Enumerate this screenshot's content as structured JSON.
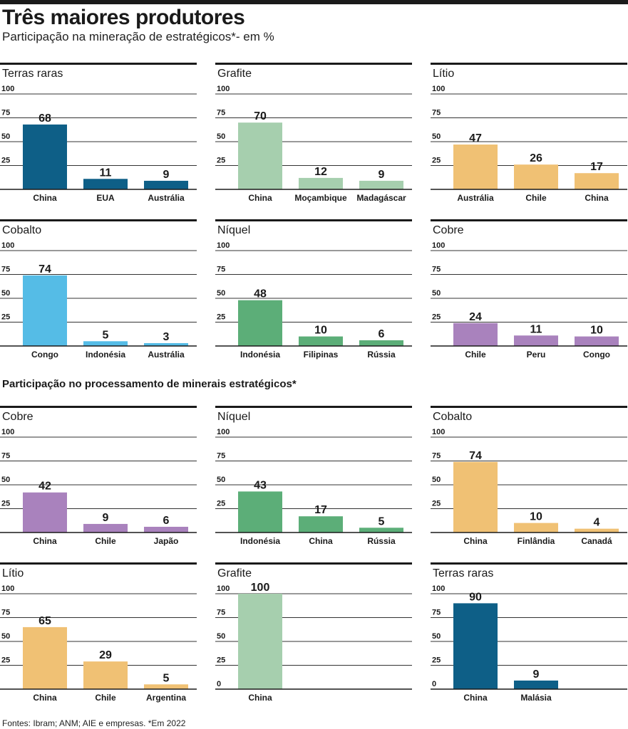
{
  "title": "Três maiores produtores",
  "subtitle": "Participação na mineração de estratégicos*- em %",
  "section2_title": "Participação no processamento de minerais estratégicos*",
  "footer": "Fontes: Ibram; ANM; AIE e empresas. *Em 2022",
  "chart_data": [
    {
      "type": "bar",
      "title": "Terras raras",
      "categories": [
        "China",
        "EUA",
        "Austrália"
      ],
      "values": [
        68,
        11,
        9
      ],
      "ylim": [
        0,
        100
      ],
      "yticks": [
        25,
        50,
        75,
        100
      ],
      "color": "#0e5f87"
    },
    {
      "type": "bar",
      "title": "Grafite",
      "categories": [
        "China",
        "Moçambique",
        "Madagáscar"
      ],
      "values": [
        70,
        12,
        9
      ],
      "ylim": [
        0,
        100
      ],
      "yticks": [
        25,
        50,
        75,
        100
      ],
      "color": "#a6cfae"
    },
    {
      "type": "bar",
      "title": "Lítio",
      "categories": [
        "Austrália",
        "Chile",
        "China"
      ],
      "values": [
        47,
        26,
        17
      ],
      "ylim": [
        0,
        100
      ],
      "yticks": [
        25,
        50,
        75,
        100
      ],
      "color": "#f0c174"
    },
    {
      "type": "bar",
      "title": "Cobalto",
      "categories": [
        "Congo",
        "Indonésia",
        "Austrália"
      ],
      "values": [
        74,
        5,
        3
      ],
      "ylim": [
        0,
        100
      ],
      "yticks": [
        25,
        50,
        75,
        100
      ],
      "color": "#55bce6"
    },
    {
      "type": "bar",
      "title": "Níquel",
      "categories": [
        "Indonésia",
        "Filipinas",
        "Rússia"
      ],
      "values": [
        48,
        10,
        6
      ],
      "ylim": [
        0,
        100
      ],
      "yticks": [
        25,
        50,
        75,
        100
      ],
      "color": "#5cae78"
    },
    {
      "type": "bar",
      "title": "Cobre",
      "categories": [
        "Chile",
        "Peru",
        "Congo"
      ],
      "values": [
        24,
        11,
        10
      ],
      "ylim": [
        0,
        100
      ],
      "yticks": [
        25,
        50,
        75,
        100
      ],
      "color": "#a982bd"
    },
    {
      "type": "bar",
      "title": "Cobre",
      "categories": [
        "China",
        "Chile",
        "Japão"
      ],
      "values": [
        42,
        9,
        6
      ],
      "ylim": [
        0,
        100
      ],
      "yticks": [
        25,
        50,
        75,
        100
      ],
      "color": "#a982bd"
    },
    {
      "type": "bar",
      "title": "Níquel",
      "categories": [
        "Indonésia",
        "China",
        "Rússia"
      ],
      "values": [
        43,
        17,
        5
      ],
      "ylim": [
        0,
        100
      ],
      "yticks": [
        25,
        50,
        75,
        100
      ],
      "color": "#5cae78"
    },
    {
      "type": "bar",
      "title": "Cobalto",
      "categories": [
        "China",
        "Finlândia",
        "Canadá"
      ],
      "values": [
        74,
        10,
        4
      ],
      "ylim": [
        0,
        100
      ],
      "yticks": [
        25,
        50,
        75,
        100
      ],
      "color": "#f0c174"
    },
    {
      "type": "bar",
      "title": "Lítio",
      "categories": [
        "China",
        "Chile",
        "Argentina"
      ],
      "values": [
        65,
        29,
        5
      ],
      "ylim": [
        0,
        100
      ],
      "yticks": [
        25,
        50,
        75,
        100
      ],
      "color": "#f0c174"
    },
    {
      "type": "bar",
      "title": "Grafite",
      "categories": [
        "China"
      ],
      "values": [
        100
      ],
      "ylim": [
        0,
        100
      ],
      "yticks": [
        0,
        25,
        50,
        75,
        100
      ],
      "color": "#a6cfae"
    },
    {
      "type": "bar",
      "title": "Terras raras",
      "categories": [
        "China",
        "Malásia"
      ],
      "values": [
        90,
        9
      ],
      "ylim": [
        0,
        100
      ],
      "yticks": [
        0,
        25,
        50,
        75,
        100
      ],
      "color": "#0e5f87"
    }
  ]
}
